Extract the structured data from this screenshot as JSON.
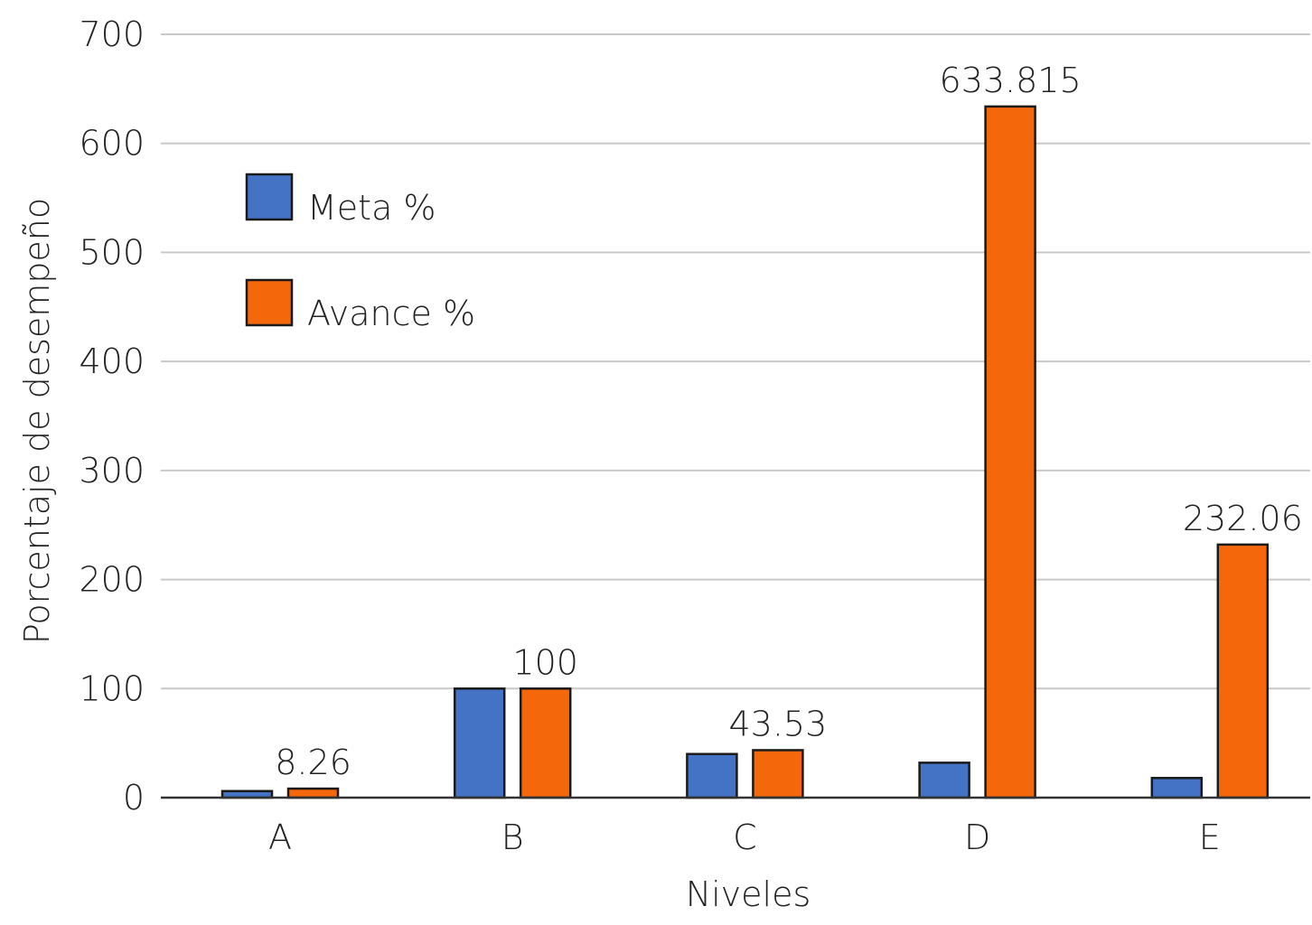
{
  "chart_data": {
    "type": "bar",
    "categories": [
      "A",
      "B",
      "C",
      "D",
      "E"
    ],
    "series": [
      {
        "name": "Meta %",
        "color": "#4472c4",
        "values": [
          6,
          100,
          40,
          32,
          18
        ],
        "labels": [
          "",
          "",
          "",
          "",
          ""
        ]
      },
      {
        "name": "Avance %",
        "color": "#f4680b",
        "values": [
          8.26,
          100,
          43.53,
          633.815,
          232.06
        ],
        "labels": [
          "8.26",
          "100",
          "43.53",
          "633.815",
          "232.06"
        ]
      }
    ],
    "xlabel": "Niveles",
    "ylabel": "Porcentaje de desempeño",
    "ylim": [
      0,
      700
    ],
    "yticks": [
      0,
      100,
      200,
      300,
      400,
      500,
      600,
      700
    ],
    "grid": true,
    "legend_position": "top-left"
  }
}
